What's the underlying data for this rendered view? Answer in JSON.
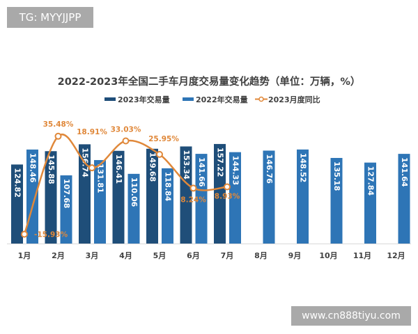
{
  "watermark_top": "TG: MYYJJPP",
  "watermark_bottom": "www.cn888tiyu.com",
  "colors": {
    "s2023": "#1f4e79",
    "s2022": "#2e75b6",
    "line": "#e0883a"
  },
  "chart_data": {
    "type": "bar+line",
    "title": "2022-2023年全国二手车月度交易量变化趋势（单位：万辆，%）",
    "categories": [
      "1月",
      "2月",
      "3月",
      "4月",
      "5月",
      "6月",
      "7月",
      "8月",
      "9月",
      "10月",
      "11月",
      "12月"
    ],
    "series": [
      {
        "name": "2023年交易量",
        "type": "bar",
        "values": [
          124.82,
          145.88,
          156.74,
          146.41,
          149.68,
          153.34,
          157.22,
          null,
          null,
          null,
          null,
          null
        ]
      },
      {
        "name": "2022年交易量",
        "type": "bar",
        "values": [
          148.46,
          107.68,
          131.81,
          110.06,
          118.84,
          141.66,
          144.33,
          146.76,
          148.52,
          135.18,
          127.84,
          141.64
        ]
      },
      {
        "name": "2023月度同比",
        "type": "line",
        "values": [
          -15.93,
          35.48,
          18.91,
          33.03,
          25.95,
          8.24,
          8.93,
          null,
          null,
          null,
          null,
          null
        ]
      }
    ],
    "legend": "top-center",
    "grid": false
  }
}
